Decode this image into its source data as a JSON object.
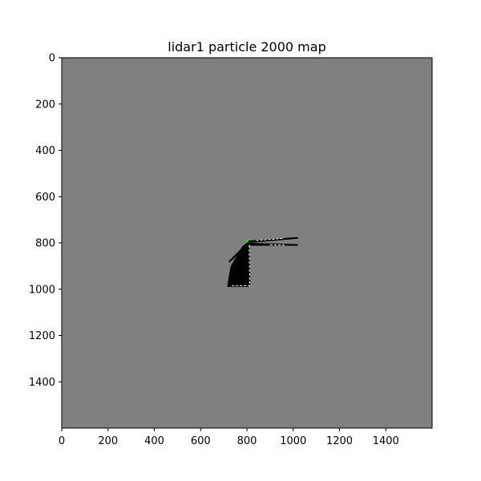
{
  "chart_data": {
    "type": "heatmap",
    "title": "lidar1 particle 2000 map",
    "xlabel": "",
    "ylabel": "",
    "xlim": [
      0,
      1600
    ],
    "ylim": [
      1600,
      0
    ],
    "x_ticks": [
      "0",
      "200",
      "400",
      "600",
      "800",
      "1000",
      "1200",
      "1400"
    ],
    "y_ticks": [
      "0",
      "200",
      "400",
      "600",
      "800",
      "1000",
      "1200",
      "1400"
    ],
    "grid": false,
    "colors": {
      "unknown": "#808080",
      "free": "#000000",
      "occupied": "#ffffff",
      "robot": "#00ff00"
    },
    "mapped_regions": [
      {
        "name": "free-space-fan",
        "points": [
          [
            805,
            795
          ],
          [
            812,
            800
          ],
          [
            815,
            990
          ],
          [
            715,
            990
          ],
          [
            720,
            955
          ],
          [
            730,
            900
          ],
          [
            780,
            815
          ]
        ]
      },
      {
        "name": "beam-upper-right",
        "points": [
          [
            805,
            790
          ],
          [
            1020,
            775
          ],
          [
            1020,
            782
          ],
          [
            812,
            800
          ]
        ]
      },
      {
        "name": "beam-right",
        "points": [
          [
            812,
            800
          ],
          [
            1020,
            805
          ],
          [
            1020,
            812
          ],
          [
            815,
            812
          ]
        ]
      },
      {
        "name": "beam-left",
        "points": [
          [
            800,
            800
          ],
          [
            720,
            880
          ],
          [
            725,
            885
          ],
          [
            805,
            812
          ]
        ]
      }
    ],
    "occupied_segments": [
      {
        "name": "bottom-wall",
        "points": [
          [
            735,
            985
          ],
          [
            815,
            985
          ]
        ]
      },
      {
        "name": "right-wall",
        "points": [
          [
            810,
            810
          ],
          [
            812,
            990
          ]
        ]
      },
      {
        "name": "upper-right-wall",
        "points": [
          [
            840,
            790
          ],
          [
            960,
            780
          ]
        ]
      },
      {
        "name": "right-beam-wall",
        "points": [
          [
            900,
            808
          ],
          [
            970,
            810
          ]
        ]
      }
    ],
    "robot": {
      "name": "robot-position",
      "x": 800,
      "y": 793
    }
  }
}
